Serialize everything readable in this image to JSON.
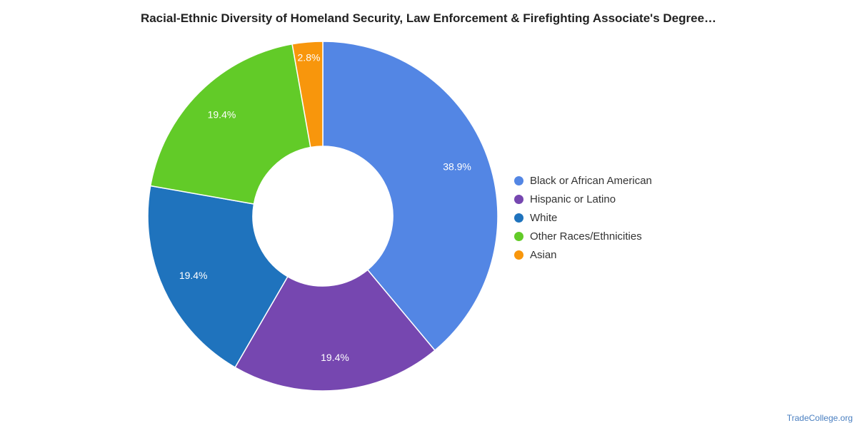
{
  "chart_data": {
    "type": "pie",
    "title": "Racial-Ethnic Diversity of Homeland Security, Law Enforcement & Firefighting Associate's Degree…",
    "legend_position": "right",
    "donut": true,
    "slices": [
      {
        "name": "Black or African American",
        "value": 38.9,
        "label": "38.9%",
        "color": "#5386e4"
      },
      {
        "name": "Hispanic or Latino",
        "value": 19.4,
        "label": "19.4%",
        "color": "#7647b0"
      },
      {
        "name": "White",
        "value": 19.4,
        "label": "19.4%",
        "color": "#1f73bd"
      },
      {
        "name": "Other Races/Ethnicities",
        "value": 19.4,
        "label": "19.4%",
        "color": "#62cb28"
      },
      {
        "name": "Asian",
        "value": 2.8,
        "label": "2.8%",
        "color": "#f8960c"
      }
    ]
  },
  "watermark": "TradeCollege.org"
}
